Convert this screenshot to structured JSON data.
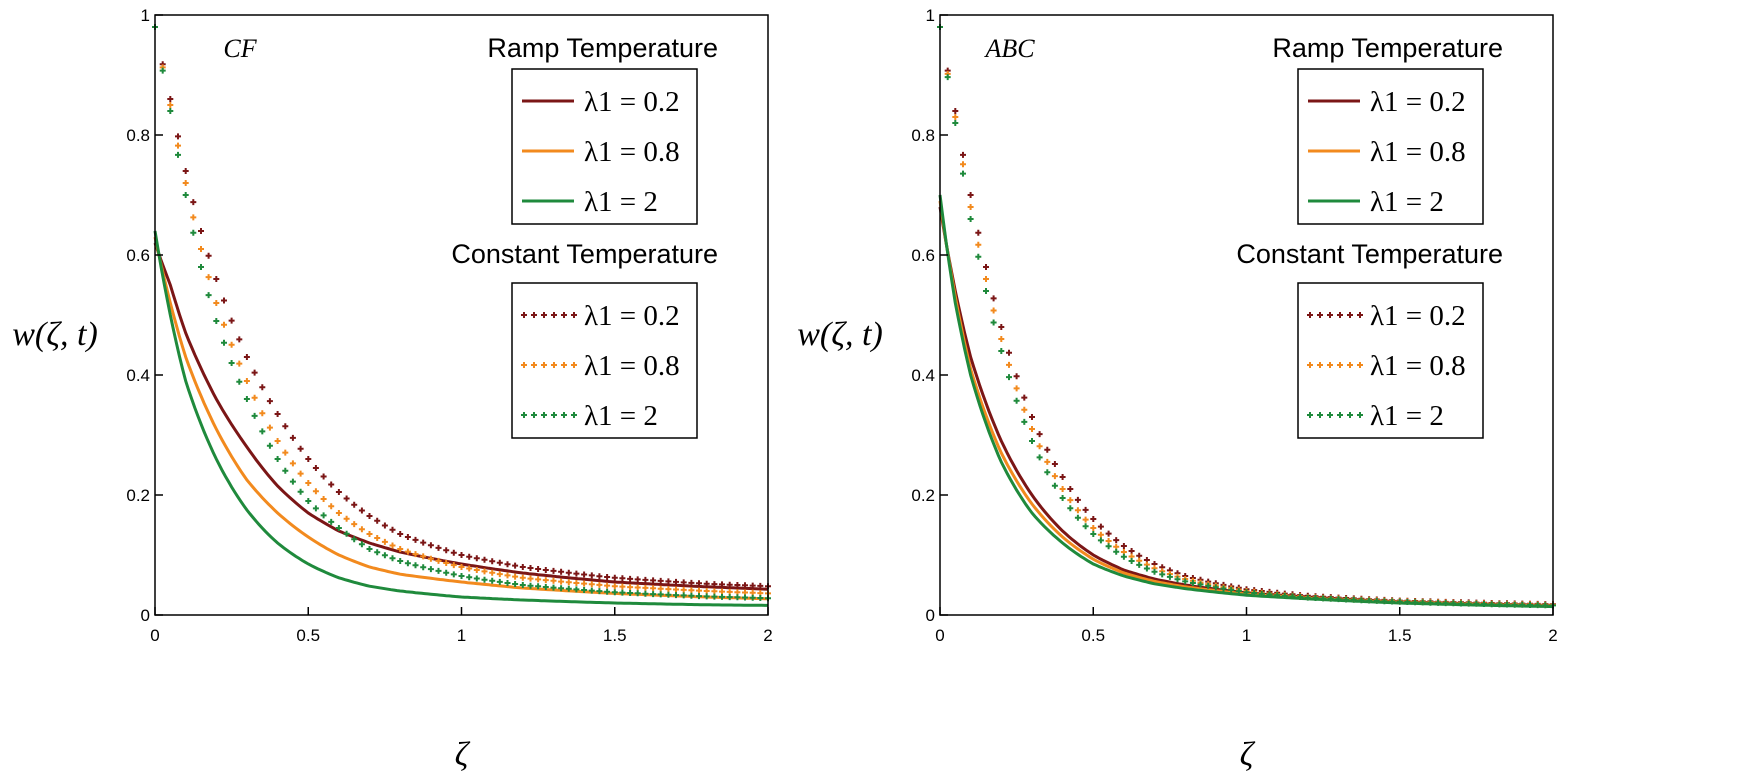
{
  "colors": {
    "brown": "#7b1616",
    "orange": "#f28a1e",
    "green": "#1f8a3c",
    "axis": "#000000"
  },
  "chart_data": [
    {
      "type": "line",
      "title": "CF",
      "xlabel": "ζ",
      "ylabel": "w(ζ, t)",
      "xlim": [
        0,
        2
      ],
      "ylim": [
        0,
        1
      ],
      "x_ticks": [
        "0",
        "0.5",
        "1",
        "1.5",
        "2"
      ],
      "y_ticks": [
        "0",
        "0.2",
        "0.4",
        "0.6",
        "0.8",
        "1"
      ],
      "legend_groups": [
        {
          "heading": "Ramp Temperature",
          "style": "solid",
          "entries": [
            {
              "label": "λ1 = 0.2",
              "color": "#7b1616"
            },
            {
              "label": "λ1 = 0.8",
              "color": "#f28a1e"
            },
            {
              "label": "λ1 = 2",
              "color": "#1f8a3c"
            }
          ]
        },
        {
          "heading": "Constant Temperature",
          "style": "dotted",
          "entries": [
            {
              "label": "λ1 = 0.2",
              "color": "#7b1616"
            },
            {
              "label": "λ1 = 0.8",
              "color": "#f28a1e"
            },
            {
              "label": "λ1 = 2",
              "color": "#1f8a3c"
            }
          ]
        }
      ],
      "series": [
        {
          "name": "Ramp λ1 = 0.2",
          "style": "solid",
          "color": "#7b1616",
          "x": [
            0,
            0.05,
            0.1,
            0.2,
            0.3,
            0.4,
            0.5,
            0.6,
            0.7,
            0.8,
            1.0,
            1.2,
            1.5,
            1.8,
            2.0
          ],
          "values": [
            0.62,
            0.55,
            0.47,
            0.36,
            0.28,
            0.215,
            0.17,
            0.14,
            0.12,
            0.105,
            0.085,
            0.07,
            0.055,
            0.047,
            0.043
          ]
        },
        {
          "name": "Ramp λ1 = 0.8",
          "style": "solid",
          "color": "#f28a1e",
          "x": [
            0,
            0.05,
            0.1,
            0.2,
            0.3,
            0.4,
            0.5,
            0.6,
            0.7,
            0.8,
            1.0,
            1.2,
            1.5,
            1.8,
            2.0
          ],
          "values": [
            0.63,
            0.52,
            0.43,
            0.31,
            0.225,
            0.17,
            0.13,
            0.1,
            0.08,
            0.068,
            0.055,
            0.045,
            0.036,
            0.03,
            0.027
          ]
        },
        {
          "name": "Ramp λ1 = 2",
          "style": "solid",
          "color": "#1f8a3c",
          "x": [
            0,
            0.05,
            0.1,
            0.2,
            0.3,
            0.4,
            0.5,
            0.6,
            0.7,
            0.8,
            1.0,
            1.2,
            1.5,
            1.8,
            2.0
          ],
          "values": [
            0.64,
            0.5,
            0.39,
            0.26,
            0.175,
            0.12,
            0.085,
            0.062,
            0.048,
            0.04,
            0.03,
            0.025,
            0.02,
            0.017,
            0.016
          ]
        },
        {
          "name": "Constant λ1 = 0.2",
          "style": "dotted",
          "color": "#7b1616",
          "x": [
            0,
            0.05,
            0.1,
            0.15,
            0.2,
            0.3,
            0.4,
            0.5,
            0.6,
            0.7,
            0.8,
            1.0,
            1.2,
            1.5,
            1.8,
            2.0
          ],
          "values": [
            0.98,
            0.86,
            0.74,
            0.64,
            0.56,
            0.43,
            0.335,
            0.26,
            0.205,
            0.165,
            0.135,
            0.1,
            0.08,
            0.062,
            0.052,
            0.048
          ]
        },
        {
          "name": "Constant λ1 = 0.8",
          "style": "dotted",
          "color": "#f28a1e",
          "x": [
            0,
            0.05,
            0.1,
            0.15,
            0.2,
            0.3,
            0.4,
            0.5,
            0.6,
            0.7,
            0.8,
            1.0,
            1.2,
            1.5,
            1.8,
            2.0
          ],
          "values": [
            0.98,
            0.85,
            0.72,
            0.61,
            0.52,
            0.39,
            0.29,
            0.22,
            0.17,
            0.135,
            0.11,
            0.08,
            0.062,
            0.048,
            0.04,
            0.036
          ]
        },
        {
          "name": "Constant λ1 = 2",
          "style": "dotted",
          "color": "#1f8a3c",
          "x": [
            0,
            0.05,
            0.1,
            0.15,
            0.2,
            0.3,
            0.4,
            0.5,
            0.6,
            0.7,
            0.8,
            1.0,
            1.2,
            1.5,
            1.8,
            2.0
          ],
          "values": [
            0.98,
            0.84,
            0.7,
            0.58,
            0.49,
            0.36,
            0.26,
            0.19,
            0.145,
            0.11,
            0.09,
            0.065,
            0.05,
            0.038,
            0.031,
            0.028
          ]
        }
      ]
    },
    {
      "type": "line",
      "title": "ABC",
      "xlabel": "ζ",
      "ylabel": "w(ζ, t)",
      "xlim": [
        0,
        2
      ],
      "ylim": [
        0,
        1
      ],
      "x_ticks": [
        "0",
        "0.5",
        "1",
        "1.5",
        "2"
      ],
      "y_ticks": [
        "0",
        "0.2",
        "0.4",
        "0.6",
        "0.8",
        "1"
      ],
      "legend_groups": [
        {
          "heading": "Ramp Temperature",
          "style": "solid",
          "entries": [
            {
              "label": "λ1 = 0.2",
              "color": "#7b1616"
            },
            {
              "label": "λ1 = 0.8",
              "color": "#f28a1e"
            },
            {
              "label": "λ1 = 2",
              "color": "#1f8a3c"
            }
          ]
        },
        {
          "heading": "Constant Temperature",
          "style": "dotted",
          "entries": [
            {
              "label": "λ1 = 0.2",
              "color": "#7b1616"
            },
            {
              "label": "λ1 = 0.8",
              "color": "#f28a1e"
            },
            {
              "label": "λ1 = 2",
              "color": "#1f8a3c"
            }
          ]
        }
      ],
      "series": [
        {
          "name": "Ramp λ1 = 0.2",
          "style": "solid",
          "color": "#7b1616",
          "x": [
            0,
            0.05,
            0.1,
            0.2,
            0.3,
            0.4,
            0.5,
            0.6,
            0.7,
            0.8,
            1.0,
            1.2,
            1.5,
            1.8,
            2.0
          ],
          "values": [
            0.68,
            0.54,
            0.43,
            0.29,
            0.2,
            0.14,
            0.1,
            0.075,
            0.06,
            0.05,
            0.037,
            0.03,
            0.022,
            0.018,
            0.016
          ]
        },
        {
          "name": "Ramp λ1 = 0.8",
          "style": "solid",
          "color": "#f28a1e",
          "x": [
            0,
            0.05,
            0.1,
            0.2,
            0.3,
            0.4,
            0.5,
            0.6,
            0.7,
            0.8,
            1.0,
            1.2,
            1.5,
            1.8,
            2.0
          ],
          "values": [
            0.69,
            0.53,
            0.41,
            0.27,
            0.185,
            0.13,
            0.093,
            0.07,
            0.056,
            0.047,
            0.035,
            0.028,
            0.021,
            0.017,
            0.015
          ]
        },
        {
          "name": "Ramp λ1 = 2",
          "style": "solid",
          "color": "#1f8a3c",
          "x": [
            0,
            0.05,
            0.1,
            0.2,
            0.3,
            0.4,
            0.5,
            0.6,
            0.7,
            0.8,
            1.0,
            1.2,
            1.5,
            1.8,
            2.0
          ],
          "values": [
            0.7,
            0.52,
            0.4,
            0.255,
            0.17,
            0.12,
            0.085,
            0.065,
            0.052,
            0.044,
            0.033,
            0.027,
            0.02,
            0.016,
            0.014
          ]
        },
        {
          "name": "Constant λ1 = 0.2",
          "style": "dotted",
          "color": "#7b1616",
          "x": [
            0,
            0.05,
            0.1,
            0.15,
            0.2,
            0.3,
            0.4,
            0.5,
            0.6,
            0.7,
            0.8,
            1.0,
            1.2,
            1.5,
            1.8,
            2.0
          ],
          "values": [
            0.98,
            0.84,
            0.7,
            0.58,
            0.48,
            0.33,
            0.23,
            0.16,
            0.115,
            0.085,
            0.065,
            0.043,
            0.032,
            0.024,
            0.02,
            0.018
          ]
        },
        {
          "name": "Constant λ1 = 0.8",
          "style": "dotted",
          "color": "#f28a1e",
          "x": [
            0,
            0.05,
            0.1,
            0.15,
            0.2,
            0.3,
            0.4,
            0.5,
            0.6,
            0.7,
            0.8,
            1.0,
            1.2,
            1.5,
            1.8,
            2.0
          ],
          "values": [
            0.98,
            0.83,
            0.68,
            0.56,
            0.46,
            0.31,
            0.21,
            0.145,
            0.105,
            0.078,
            0.06,
            0.04,
            0.03,
            0.023,
            0.019,
            0.017
          ]
        },
        {
          "name": "Constant λ1 = 2",
          "style": "dotted",
          "color": "#1f8a3c",
          "x": [
            0,
            0.05,
            0.1,
            0.15,
            0.2,
            0.3,
            0.4,
            0.5,
            0.6,
            0.7,
            0.8,
            1.0,
            1.2,
            1.5,
            1.8,
            2.0
          ],
          "values": [
            0.98,
            0.82,
            0.66,
            0.54,
            0.44,
            0.29,
            0.195,
            0.135,
            0.097,
            0.072,
            0.056,
            0.038,
            0.029,
            0.022,
            0.018,
            0.016
          ]
        }
      ]
    }
  ]
}
